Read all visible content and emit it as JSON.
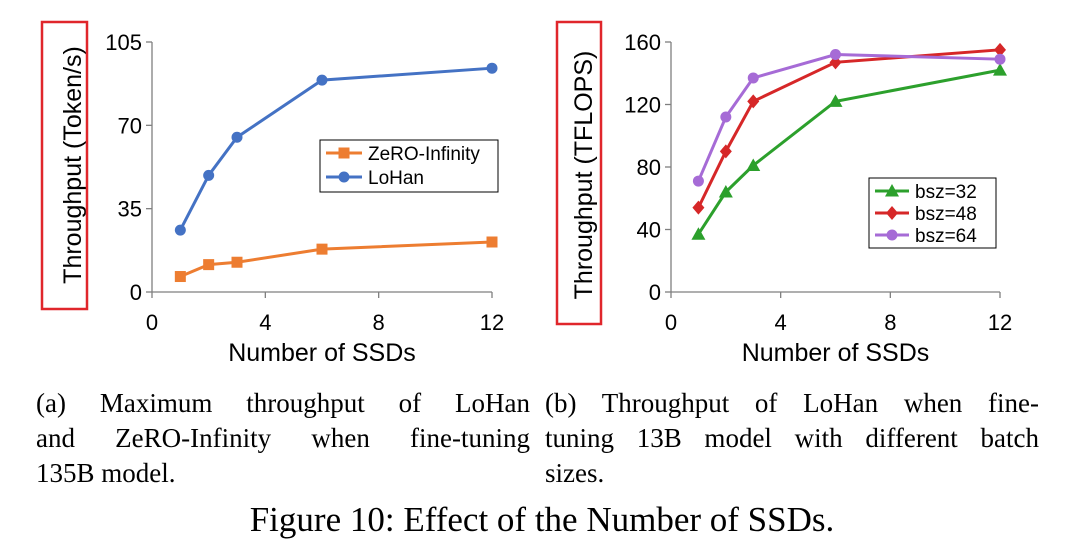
{
  "chart_data": [
    {
      "type": "line",
      "ylabel": "Throughput (Token/s)",
      "xlabel": "Number of SSDs",
      "xlim": [
        0,
        12
      ],
      "ylim": [
        0,
        105
      ],
      "xticks": [
        "0",
        "4",
        "8",
        "12"
      ],
      "yticks": [
        "0",
        "35",
        "70",
        "105"
      ],
      "grid": false,
      "legend": "center-right",
      "x": [
        1,
        2,
        3,
        6,
        12
      ],
      "series": [
        {
          "name": "ZeRO-Infinity",
          "color": "#ED7D31",
          "marker": "square",
          "values": [
            6.5,
            11.5,
            12.5,
            18,
            21
          ]
        },
        {
          "name": "LoHan",
          "color": "#4472C4",
          "marker": "circle",
          "values": [
            26,
            49,
            65,
            89,
            94
          ]
        }
      ],
      "highlight_color": "#E0262B"
    },
    {
      "type": "line",
      "ylabel": "Throughput (TFLOPS)",
      "xlabel": "Number of SSDs",
      "xlim": [
        0,
        12
      ],
      "ylim": [
        0,
        160
      ],
      "xticks": [
        "0",
        "4",
        "8",
        "12"
      ],
      "yticks": [
        "0",
        "40",
        "80",
        "120",
        "160"
      ],
      "grid": false,
      "legend": "bottom-right",
      "x": [
        1,
        2,
        3,
        6,
        12
      ],
      "series": [
        {
          "name": "bsz=32",
          "color": "#2CA02C",
          "marker": "triangle",
          "values": [
            37,
            64,
            81,
            122,
            142
          ]
        },
        {
          "name": "bsz=48",
          "color": "#D62728",
          "marker": "diamond",
          "values": [
            54,
            90,
            122,
            147,
            155
          ]
        },
        {
          "name": "bsz=64",
          "color": "#A66BD6",
          "marker": "circle",
          "values": [
            71,
            112,
            137,
            152,
            149
          ]
        }
      ],
      "highlight_color": "#E0262B"
    }
  ],
  "captions": {
    "a_line1": "(a) Maximum throughput of LoHan",
    "a_line2": "and ZeRO-Infinity when fine-tuning",
    "a_line3": "135B model.",
    "b_line1": "(b) Throughput of LoHan when fine-",
    "b_line2": "tuning 13B model with different batch",
    "b_line3": "sizes.",
    "figure": "Figure 10: Effect of the Number of SSDs."
  }
}
